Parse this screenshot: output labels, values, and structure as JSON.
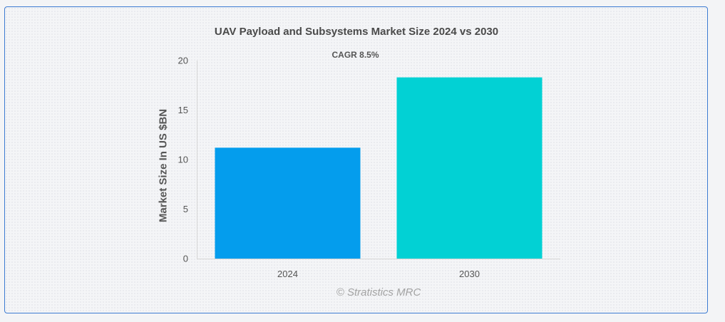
{
  "chart_data": {
    "type": "bar",
    "title": "UAV Payload and Subsystems Market Size 2024 vs 2030",
    "subtitle": "CAGR 8.5%",
    "xlabel": "",
    "ylabel": "Market Size In US $BN",
    "categories": [
      "2024",
      "2030"
    ],
    "values": [
      11.2,
      18.3
    ],
    "ylim": [
      0,
      20
    ],
    "yticks": [
      "0",
      "5",
      "10",
      "15",
      "20"
    ],
    "grid": false,
    "legend": "none",
    "colors": [
      "#049ded",
      "#02d1d4"
    ]
  },
  "watermark": "© Stratistics MRC"
}
